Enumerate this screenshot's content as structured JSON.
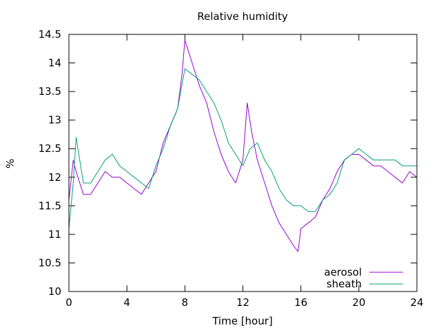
{
  "chart_data": {
    "type": "line",
    "title": "Relative humidity",
    "xlabel": "Time [hour]",
    "ylabel": "%",
    "xlim": [
      0,
      24
    ],
    "ylim": [
      10,
      14.5
    ],
    "xticks": [
      0,
      4,
      8,
      12,
      16,
      20,
      24
    ],
    "yticks": [
      10,
      10.5,
      11,
      11.5,
      12,
      12.5,
      13,
      13.5,
      14,
      14.5
    ],
    "grid": false,
    "legend_position": "bottom-right",
    "series": [
      {
        "name": "aerosol",
        "color": "#9400d3",
        "x": [
          0,
          0.3,
          0.5,
          1,
          1.5,
          2,
          2.5,
          3,
          3.5,
          4,
          4.5,
          5,
          5.5,
          6,
          6.5,
          7,
          7.5,
          7.8,
          8,
          8.5,
          9,
          9.5,
          10,
          10.5,
          11,
          11.5,
          12,
          12.3,
          12.6,
          13,
          13.5,
          14,
          14.5,
          15,
          15.5,
          15.8,
          16,
          16.5,
          17,
          17.5,
          18,
          18.5,
          19,
          19.5,
          20,
          20.5,
          21,
          21.5,
          22,
          22.5,
          23,
          23.5,
          24
        ],
        "y": [
          11.6,
          12.3,
          12.1,
          11.7,
          11.7,
          11.9,
          12.1,
          12.0,
          12.0,
          11.9,
          11.8,
          11.7,
          11.9,
          12.1,
          12.6,
          12.9,
          13.2,
          13.8,
          14.4,
          14.0,
          13.6,
          13.3,
          12.8,
          12.4,
          12.1,
          11.9,
          12.3,
          13.3,
          12.8,
          12.3,
          11.9,
          11.5,
          11.2,
          11.0,
          10.8,
          10.7,
          11.1,
          11.2,
          11.3,
          11.6,
          11.8,
          12.1,
          12.3,
          12.4,
          12.4,
          12.3,
          12.2,
          12.2,
          12.1,
          12.0,
          11.9,
          12.1,
          12.0
        ]
      },
      {
        "name": "sheath",
        "color": "#009e73",
        "x": [
          0,
          0.3,
          0.5,
          1,
          1.5,
          2,
          2.5,
          3,
          3.5,
          4,
          4.5,
          5,
          5.5,
          6,
          6.5,
          7,
          7.5,
          8,
          8.5,
          9,
          9.5,
          10,
          10.5,
          11,
          11.5,
          12,
          12.5,
          13,
          13.5,
          14,
          14.5,
          15,
          15.5,
          16,
          16.5,
          17,
          17.5,
          18,
          18.5,
          19,
          19.5,
          20,
          20.5,
          21,
          21.5,
          22,
          22.5,
          23,
          23.5,
          24
        ],
        "y": [
          11.1,
          11.9,
          12.7,
          11.9,
          11.9,
          12.1,
          12.3,
          12.4,
          12.2,
          12.1,
          12.0,
          11.9,
          11.8,
          12.2,
          12.5,
          12.9,
          13.2,
          13.9,
          13.8,
          13.7,
          13.5,
          13.3,
          13.0,
          12.6,
          12.4,
          12.2,
          12.5,
          12.6,
          12.3,
          12.1,
          11.8,
          11.6,
          11.5,
          11.5,
          11.4,
          11.4,
          11.6,
          11.7,
          11.9,
          12.3,
          12.4,
          12.5,
          12.4,
          12.3,
          12.3,
          12.3,
          12.3,
          12.2,
          12.2,
          12.2
        ]
      }
    ]
  }
}
